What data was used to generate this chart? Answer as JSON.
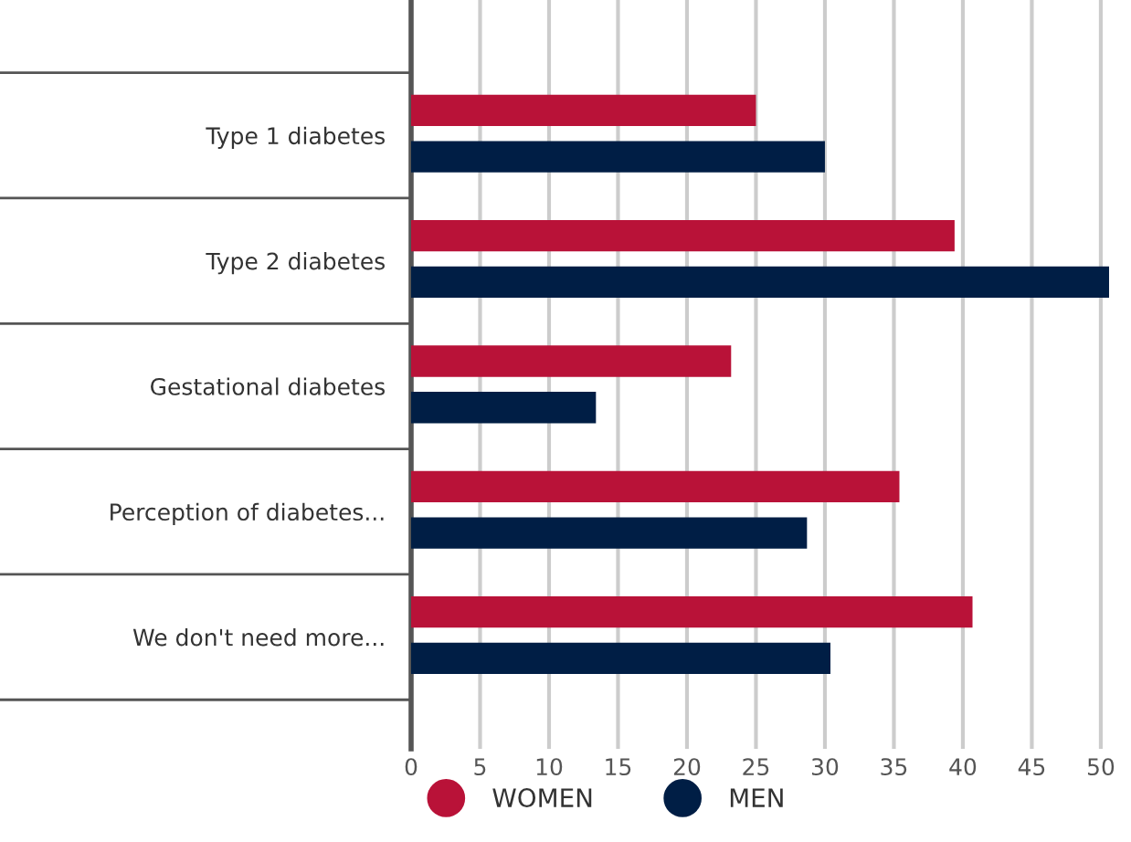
{
  "chart_data": {
    "type": "bar",
    "orientation": "horizontal",
    "categories": [
      "Type 1 diabetes",
      "Type 2 diabetes",
      "Gestational diabetes",
      "Perception of diabetes...",
      "We don't need more..."
    ],
    "series": [
      {
        "name": "WOMEN",
        "color": "#b91238",
        "values": [
          25,
          39.4,
          23.2,
          35.4,
          40.7
        ]
      },
      {
        "name": "MEN",
        "color": "#001e45",
        "values": [
          30,
          50.6,
          13.4,
          28.7,
          30.4
        ]
      }
    ],
    "xlim": [
      0,
      50.6
    ],
    "xticks": [
      0,
      5,
      10,
      15,
      20,
      25,
      30,
      35,
      40,
      45,
      50
    ],
    "grid": "x",
    "legend": "bottom",
    "marker": "circle"
  }
}
